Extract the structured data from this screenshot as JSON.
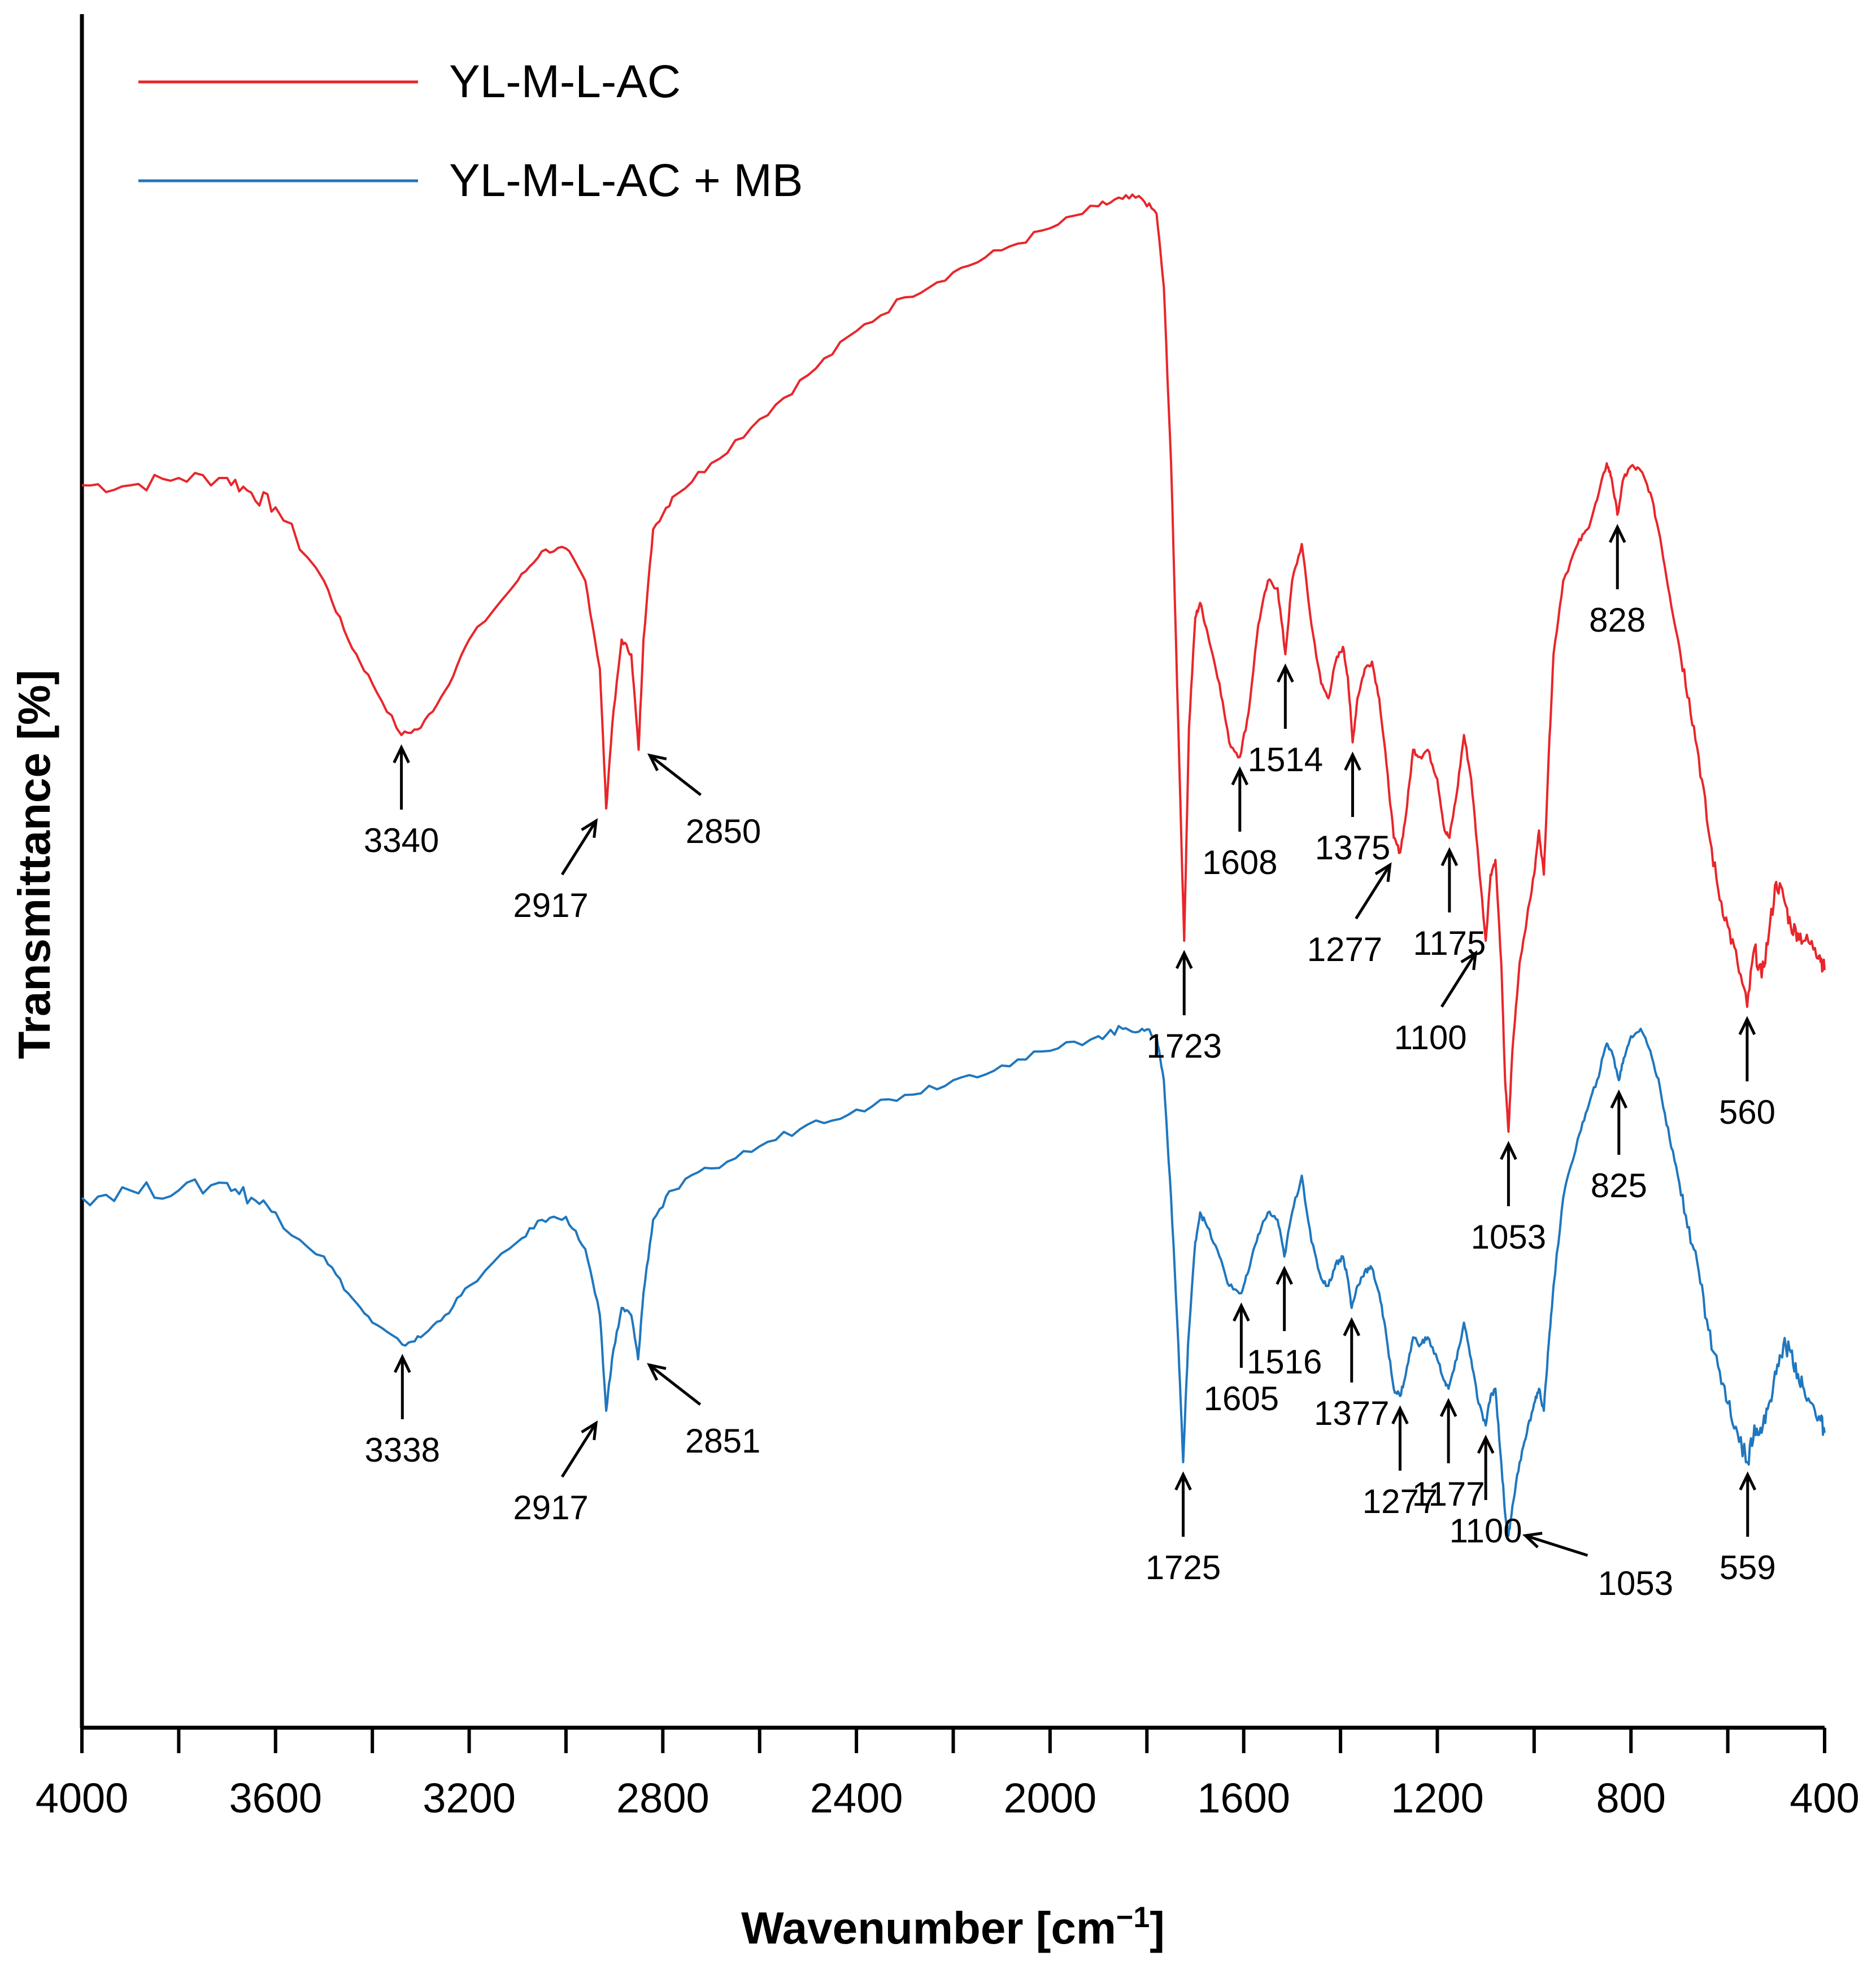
{
  "chart_data": {
    "type": "line",
    "title": "",
    "xlabel": "Wavenumber [cm",
    "xlabel_sup": "−1",
    "xlabel_suffix": "]",
    "ylabel": "Transmittance [%]",
    "xlim": [
      4000,
      400
    ],
    "x_reversed": true,
    "x_ticks": [
      4000,
      3600,
      3200,
      2800,
      2400,
      2000,
      1600,
      1200,
      800,
      400
    ],
    "x_tick_labels": [
      "4000",
      "3600",
      "3200",
      "2800",
      "2400",
      "2000",
      "1600",
      "1200",
      "800",
      "400"
    ],
    "y_ticks_shown": false,
    "grid": false,
    "legend_position": "top-left",
    "series": [
      {
        "name": "YL-M-L-AC",
        "color": "#e8262b",
        "points": [
          [
            4000,
            0.785
          ],
          [
            3900,
            0.785
          ],
          [
            3800,
            0.79
          ],
          [
            3700,
            0.79
          ],
          [
            3650,
            0.78
          ],
          [
            3600,
            0.77
          ],
          [
            3500,
            0.72
          ],
          [
            3450,
            0.68
          ],
          [
            3400,
            0.65
          ],
          [
            3340,
            0.615
          ],
          [
            3300,
            0.62
          ],
          [
            3250,
            0.645
          ],
          [
            3200,
            0.68
          ],
          [
            3100,
            0.72
          ],
          [
            3050,
            0.74
          ],
          [
            3000,
            0.742
          ],
          [
            2960,
            0.72
          ],
          [
            2930,
            0.66
          ],
          [
            2917,
            0.565
          ],
          [
            2905,
            0.62
          ],
          [
            2885,
            0.68
          ],
          [
            2865,
            0.67
          ],
          [
            2850,
            0.605
          ],
          [
            2840,
            0.68
          ],
          [
            2820,
            0.755
          ],
          [
            2780,
            0.777
          ],
          [
            2700,
            0.8
          ],
          [
            2600,
            0.83
          ],
          [
            2500,
            0.86
          ],
          [
            2400,
            0.89
          ],
          [
            2300,
            0.913
          ],
          [
            2200,
            0.93
          ],
          [
            2100,
            0.945
          ],
          [
            2000,
            0.96
          ],
          [
            1900,
            0.975
          ],
          [
            1850,
            0.98
          ],
          [
            1810,
            0.98
          ],
          [
            1780,
            0.97
          ],
          [
            1765,
            0.92
          ],
          [
            1750,
            0.8
          ],
          [
            1735,
            0.62
          ],
          [
            1723,
            0.475
          ],
          [
            1713,
            0.62
          ],
          [
            1700,
            0.695
          ],
          [
            1690,
            0.705
          ],
          [
            1675,
            0.685
          ],
          [
            1650,
            0.65
          ],
          [
            1630,
            0.61
          ],
          [
            1608,
            0.6
          ],
          [
            1590,
            0.63
          ],
          [
            1570,
            0.69
          ],
          [
            1550,
            0.72
          ],
          [
            1530,
            0.715
          ],
          [
            1514,
            0.67
          ],
          [
            1500,
            0.72
          ],
          [
            1480,
            0.745
          ],
          [
            1460,
            0.69
          ],
          [
            1440,
            0.65
          ],
          [
            1425,
            0.64
          ],
          [
            1410,
            0.665
          ],
          [
            1395,
            0.675
          ],
          [
            1385,
            0.655
          ],
          [
            1375,
            0.61
          ],
          [
            1365,
            0.64
          ],
          [
            1350,
            0.66
          ],
          [
            1335,
            0.665
          ],
          [
            1320,
            0.64
          ],
          [
            1305,
            0.595
          ],
          [
            1290,
            0.545
          ],
          [
            1277,
            0.535
          ],
          [
            1265,
            0.56
          ],
          [
            1250,
            0.605
          ],
          [
            1235,
            0.6
          ],
          [
            1220,
            0.605
          ],
          [
            1200,
            0.585
          ],
          [
            1185,
            0.55
          ],
          [
            1175,
            0.545
          ],
          [
            1160,
            0.575
          ],
          [
            1145,
            0.615
          ],
          [
            1130,
            0.585
          ],
          [
            1115,
            0.53
          ],
          [
            1100,
            0.475
          ],
          [
            1090,
            0.52
          ],
          [
            1080,
            0.53
          ],
          [
            1068,
            0.46
          ],
          [
            1060,
            0.38
          ],
          [
            1053,
            0.345
          ],
          [
            1045,
            0.4
          ],
          [
            1030,
            0.46
          ],
          [
            1015,
            0.49
          ],
          [
            1000,
            0.52
          ],
          [
            990,
            0.55
          ],
          [
            980,
            0.52
          ],
          [
            970,
            0.6
          ],
          [
            960,
            0.67
          ],
          [
            940,
            0.72
          ],
          [
            910,
            0.745
          ],
          [
            890,
            0.755
          ],
          [
            870,
            0.775
          ],
          [
            850,
            0.8
          ],
          [
            840,
            0.79
          ],
          [
            828,
            0.765
          ],
          [
            815,
            0.79
          ],
          [
            800,
            0.798
          ],
          [
            780,
            0.795
          ],
          [
            760,
            0.78
          ],
          [
            740,
            0.75
          ],
          [
            720,
            0.71
          ],
          [
            700,
            0.675
          ],
          [
            680,
            0.64
          ],
          [
            660,
            0.6
          ],
          [
            640,
            0.55
          ],
          [
            620,
            0.51
          ],
          [
            600,
            0.485
          ],
          [
            580,
            0.46
          ],
          [
            560,
            0.43
          ],
          [
            545,
            0.47
          ],
          [
            530,
            0.45
          ],
          [
            515,
            0.48
          ],
          [
            500,
            0.515
          ],
          [
            485,
            0.505
          ],
          [
            470,
            0.485
          ],
          [
            455,
            0.48
          ],
          [
            440,
            0.475
          ],
          [
            420,
            0.47
          ],
          [
            410,
            0.465
          ],
          [
            400,
            0.455
          ]
        ]
      },
      {
        "name": "YL-M-L-AC + MB",
        "color": "#1f77be",
        "points": [
          [
            4000,
            0.3
          ],
          [
            3900,
            0.305
          ],
          [
            3800,
            0.305
          ],
          [
            3700,
            0.31
          ],
          [
            3650,
            0.3
          ],
          [
            3600,
            0.29
          ],
          [
            3500,
            0.26
          ],
          [
            3450,
            0.235
          ],
          [
            3400,
            0.215
          ],
          [
            3338,
            0.2
          ],
          [
            3300,
            0.205
          ],
          [
            3250,
            0.22
          ],
          [
            3200,
            0.24
          ],
          [
            3100,
            0.27
          ],
          [
            3050,
            0.285
          ],
          [
            3000,
            0.287
          ],
          [
            2960,
            0.265
          ],
          [
            2930,
            0.22
          ],
          [
            2917,
            0.155
          ],
          [
            2905,
            0.19
          ],
          [
            2885,
            0.225
          ],
          [
            2865,
            0.22
          ],
          [
            2851,
            0.19
          ],
          [
            2840,
            0.235
          ],
          [
            2820,
            0.285
          ],
          [
            2780,
            0.305
          ],
          [
            2700,
            0.32
          ],
          [
            2600,
            0.335
          ],
          [
            2500,
            0.35
          ],
          [
            2400,
            0.36
          ],
          [
            2300,
            0.37
          ],
          [
            2200,
            0.38
          ],
          [
            2100,
            0.39
          ],
          [
            2000,
            0.4
          ],
          [
            1900,
            0.41
          ],
          [
            1850,
            0.415
          ],
          [
            1810,
            0.415
          ],
          [
            1780,
            0.41
          ],
          [
            1765,
            0.38
          ],
          [
            1750,
            0.3
          ],
          [
            1735,
            0.2
          ],
          [
            1725,
            0.12
          ],
          [
            1715,
            0.2
          ],
          [
            1700,
            0.27
          ],
          [
            1690,
            0.29
          ],
          [
            1675,
            0.28
          ],
          [
            1650,
            0.26
          ],
          [
            1630,
            0.24
          ],
          [
            1605,
            0.235
          ],
          [
            1590,
            0.25
          ],
          [
            1570,
            0.275
          ],
          [
            1550,
            0.29
          ],
          [
            1530,
            0.285
          ],
          [
            1516,
            0.26
          ],
          [
            1500,
            0.29
          ],
          [
            1480,
            0.315
          ],
          [
            1460,
            0.27
          ],
          [
            1440,
            0.245
          ],
          [
            1425,
            0.24
          ],
          [
            1410,
            0.255
          ],
          [
            1395,
            0.26
          ],
          [
            1385,
            0.245
          ],
          [
            1377,
            0.225
          ],
          [
            1365,
            0.24
          ],
          [
            1350,
            0.25
          ],
          [
            1335,
            0.252
          ],
          [
            1320,
            0.235
          ],
          [
            1305,
            0.205
          ],
          [
            1290,
            0.17
          ],
          [
            1277,
            0.165
          ],
          [
            1265,
            0.18
          ],
          [
            1250,
            0.205
          ],
          [
            1235,
            0.2
          ],
          [
            1220,
            0.205
          ],
          [
            1200,
            0.19
          ],
          [
            1185,
            0.175
          ],
          [
            1177,
            0.17
          ],
          [
            1160,
            0.19
          ],
          [
            1145,
            0.215
          ],
          [
            1130,
            0.19
          ],
          [
            1115,
            0.16
          ],
          [
            1100,
            0.145
          ],
          [
            1090,
            0.165
          ],
          [
            1080,
            0.17
          ],
          [
            1068,
            0.12
          ],
          [
            1060,
            0.085
          ],
          [
            1053,
            0.07
          ],
          [
            1045,
            0.09
          ],
          [
            1030,
            0.12
          ],
          [
            1015,
            0.14
          ],
          [
            1000,
            0.16
          ],
          [
            990,
            0.17
          ],
          [
            980,
            0.155
          ],
          [
            970,
            0.2
          ],
          [
            960,
            0.24
          ],
          [
            940,
            0.3
          ],
          [
            910,
            0.34
          ],
          [
            890,
            0.36
          ],
          [
            870,
            0.38
          ],
          [
            850,
            0.405
          ],
          [
            840,
            0.4
          ],
          [
            825,
            0.38
          ],
          [
            815,
            0.395
          ],
          [
            800,
            0.41
          ],
          [
            780,
            0.415
          ],
          [
            760,
            0.4
          ],
          [
            740,
            0.375
          ],
          [
            720,
            0.34
          ],
          [
            700,
            0.31
          ],
          [
            680,
            0.28
          ],
          [
            660,
            0.25
          ],
          [
            640,
            0.21
          ],
          [
            620,
            0.185
          ],
          [
            600,
            0.16
          ],
          [
            580,
            0.14
          ],
          [
            559,
            0.12
          ],
          [
            545,
            0.145
          ],
          [
            530,
            0.14
          ],
          [
            515,
            0.16
          ],
          [
            500,
            0.18
          ],
          [
            485,
            0.2
          ],
          [
            470,
            0.195
          ],
          [
            455,
            0.18
          ],
          [
            440,
            0.165
          ],
          [
            420,
            0.155
          ],
          [
            410,
            0.15
          ],
          [
            400,
            0.14
          ]
        ]
      }
    ],
    "annotations": [
      {
        "series": 0,
        "label": "3340",
        "x": 3340,
        "arrow": "up"
      },
      {
        "series": 0,
        "label": "2917",
        "x": 2917,
        "arrow": "up-right"
      },
      {
        "series": 0,
        "label": "2850",
        "x": 2850,
        "arrow": "up-left"
      },
      {
        "series": 0,
        "label": "1723",
        "x": 1723,
        "arrow": "up"
      },
      {
        "series": 0,
        "label": "1608",
        "x": 1608,
        "arrow": "up"
      },
      {
        "series": 0,
        "label": "1514",
        "x": 1514,
        "arrow": "up"
      },
      {
        "series": 0,
        "label": "1375",
        "x": 1375,
        "arrow": "up"
      },
      {
        "series": 0,
        "label": "1277",
        "x": 1277,
        "arrow": "up-right"
      },
      {
        "series": 0,
        "label": "1175",
        "x": 1175,
        "arrow": "up"
      },
      {
        "series": 0,
        "label": "1100",
        "x": 1100,
        "arrow": "up-right"
      },
      {
        "series": 0,
        "label": "1053",
        "x": 1053,
        "arrow": "up"
      },
      {
        "series": 0,
        "label": "828",
        "x": 828,
        "arrow": "up"
      },
      {
        "series": 0,
        "label": "560",
        "x": 560,
        "arrow": "up"
      },
      {
        "series": 1,
        "label": "3338",
        "x": 3338,
        "arrow": "up"
      },
      {
        "series": 1,
        "label": "2917",
        "x": 2917,
        "arrow": "up-right"
      },
      {
        "series": 1,
        "label": "2851",
        "x": 2851,
        "arrow": "up-left"
      },
      {
        "series": 1,
        "label": "1725",
        "x": 1725,
        "arrow": "up"
      },
      {
        "series": 1,
        "label": "1605",
        "x": 1605,
        "arrow": "up"
      },
      {
        "series": 1,
        "label": "1516",
        "x": 1516,
        "arrow": "up"
      },
      {
        "series": 1,
        "label": "1377",
        "x": 1377,
        "arrow": "up"
      },
      {
        "series": 1,
        "label": "1277",
        "x": 1277,
        "arrow": "up"
      },
      {
        "series": 1,
        "label": "1177",
        "x": 1177,
        "arrow": "up"
      },
      {
        "series": 1,
        "label": "1100",
        "x": 1100,
        "arrow": "up"
      },
      {
        "series": 1,
        "label": "1053",
        "x": 1053,
        "arrow": "left"
      },
      {
        "series": 1,
        "label": "825",
        "x": 825,
        "arrow": "up"
      },
      {
        "series": 1,
        "label": "559",
        "x": 559,
        "arrow": "up"
      }
    ]
  }
}
